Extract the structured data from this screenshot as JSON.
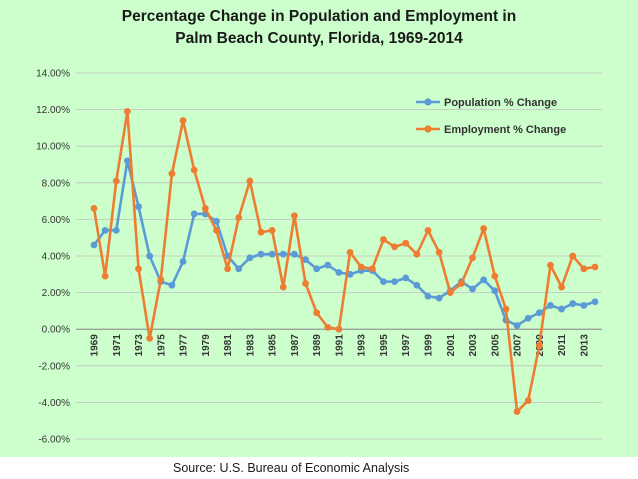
{
  "chart_data": {
    "type": "line",
    "title": "Percentage Change in Population and Employment in Palm Beach County, Florida, 1969-2014",
    "title_line1": "Percentage Change in Population and Employment in",
    "title_line2": "Palm Beach County, Florida, 1969-2014",
    "source": "Source: U.S. Bureau of Economic Analysis",
    "xlabel": "",
    "ylabel": "",
    "ylim": [
      -6,
      14
    ],
    "y_ticks": [
      "14.00%",
      "12.00%",
      "10.00%",
      "8.00%",
      "6.00%",
      "4.00%",
      "2.00%",
      "0.00%",
      "-2.00%",
      "-4.00%",
      "-6.00%"
    ],
    "x_tick_labels": [
      "1969",
      "1971",
      "1973",
      "1975",
      "1977",
      "1979",
      "1981",
      "1983",
      "1985",
      "1987",
      "1989",
      "1991",
      "1993",
      "1995",
      "1997",
      "1999",
      "2001",
      "2003",
      "2005",
      "2007",
      "2009",
      "2011",
      "2013"
    ],
    "x": [
      1969,
      1970,
      1971,
      1972,
      1973,
      1974,
      1975,
      1976,
      1977,
      1978,
      1979,
      1980,
      1981,
      1982,
      1983,
      1984,
      1985,
      1986,
      1987,
      1988,
      1989,
      1990,
      1991,
      1992,
      1993,
      1994,
      1995,
      1996,
      1997,
      1998,
      1999,
      2000,
      2001,
      2002,
      2003,
      2004,
      2005,
      2006,
      2007,
      2008,
      2009,
      2010,
      2011,
      2012,
      2013,
      2014
    ],
    "grid": true,
    "legend_position": "top-right",
    "series": [
      {
        "name": "Population % Change",
        "color": "#5b9bd5",
        "values": [
          4.6,
          5.4,
          5.4,
          9.2,
          6.7,
          4.0,
          2.6,
          2.4,
          3.7,
          6.3,
          6.3,
          5.9,
          4.0,
          3.3,
          3.9,
          4.1,
          4.1,
          4.1,
          4.1,
          3.8,
          3.3,
          3.5,
          3.1,
          3.0,
          3.2,
          3.2,
          2.6,
          2.6,
          2.8,
          2.4,
          1.8,
          1.7,
          2.1,
          2.6,
          2.2,
          2.7,
          2.1,
          0.5,
          0.2,
          0.6,
          0.9,
          1.3,
          1.1,
          1.4,
          1.3,
          1.5
        ]
      },
      {
        "name": "Employment % Change",
        "color": "#ed7d31",
        "values": [
          6.6,
          2.9,
          8.1,
          11.9,
          3.3,
          -0.5,
          2.7,
          8.5,
          11.4,
          8.7,
          6.6,
          5.4,
          3.3,
          6.1,
          8.1,
          5.3,
          5.4,
          2.3,
          6.2,
          2.5,
          0.9,
          0.1,
          0.0,
          4.2,
          3.4,
          3.3,
          4.9,
          4.5,
          4.7,
          4.1,
          5.4,
          4.2,
          2.0,
          2.5,
          3.9,
          5.5,
          2.9,
          1.1,
          -4.5,
          -3.9,
          -0.9,
          3.5,
          2.3,
          4.0,
          3.3,
          3.4
        ]
      }
    ]
  }
}
